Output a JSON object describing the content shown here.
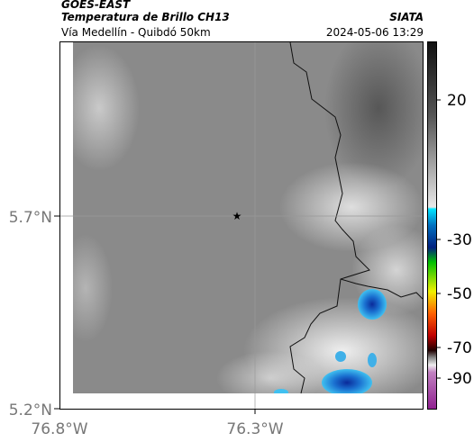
{
  "header": {
    "title": "GOES-EAST",
    "subtitle": "Temperatura de Brillo CH13",
    "right_title": "SIATA",
    "route": "Vía Medellín - Quibdó 50km",
    "datetime": "2024-05-06 13:29"
  },
  "map": {
    "lat_labels": [
      "5.7°N",
      "5.2°N"
    ],
    "lon_labels": [
      "76.8°W",
      "76.3°W"
    ]
  },
  "colorbar": {
    "ticks": [
      20,
      -30,
      -50,
      -70,
      -90
    ]
  }
}
